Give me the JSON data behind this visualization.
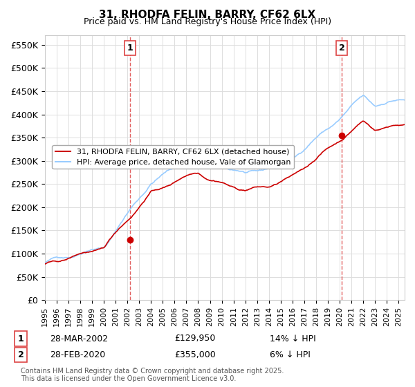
{
  "title": "31, RHODFA FELIN, BARRY, CF62 6LX",
  "subtitle": "Price paid vs. HM Land Registry's House Price Index (HPI)",
  "ylabel_ticks": [
    "£0",
    "£50K",
    "£100K",
    "£150K",
    "£200K",
    "£250K",
    "£300K",
    "£350K",
    "£400K",
    "£450K",
    "£500K",
    "£550K"
  ],
  "ytick_values": [
    0,
    50000,
    100000,
    150000,
    200000,
    250000,
    300000,
    350000,
    400000,
    450000,
    500000,
    550000
  ],
  "ylim": [
    0,
    570000
  ],
  "xlim_start": 1995,
  "xlim_end": 2025.5,
  "sale1_date": 2002.24,
  "sale1_price": 129950,
  "sale1_label": "1",
  "sale1_date_str": "28-MAR-2002",
  "sale1_price_str": "£129,950",
  "sale1_hpi_str": "14% ↓ HPI",
  "sale2_date": 2020.16,
  "sale2_price": 355000,
  "sale2_label": "2",
  "sale2_date_str": "28-FEB-2020",
  "sale2_price_str": "£355,000",
  "sale2_hpi_str": "6% ↓ HPI",
  "line1_color": "#cc0000",
  "line2_color": "#99ccff",
  "vline_color": "#dd4444",
  "marker_color": "#cc0000",
  "grid_color": "#dddddd",
  "bg_color": "#ffffff",
  "legend1_label": "31, RHODFA FELIN, BARRY, CF62 6LX (detached house)",
  "legend2_label": "HPI: Average price, detached house, Vale of Glamorgan",
  "footer": "Contains HM Land Registry data © Crown copyright and database right 2025.\nThis data is licensed under the Open Government Licence v3.0."
}
